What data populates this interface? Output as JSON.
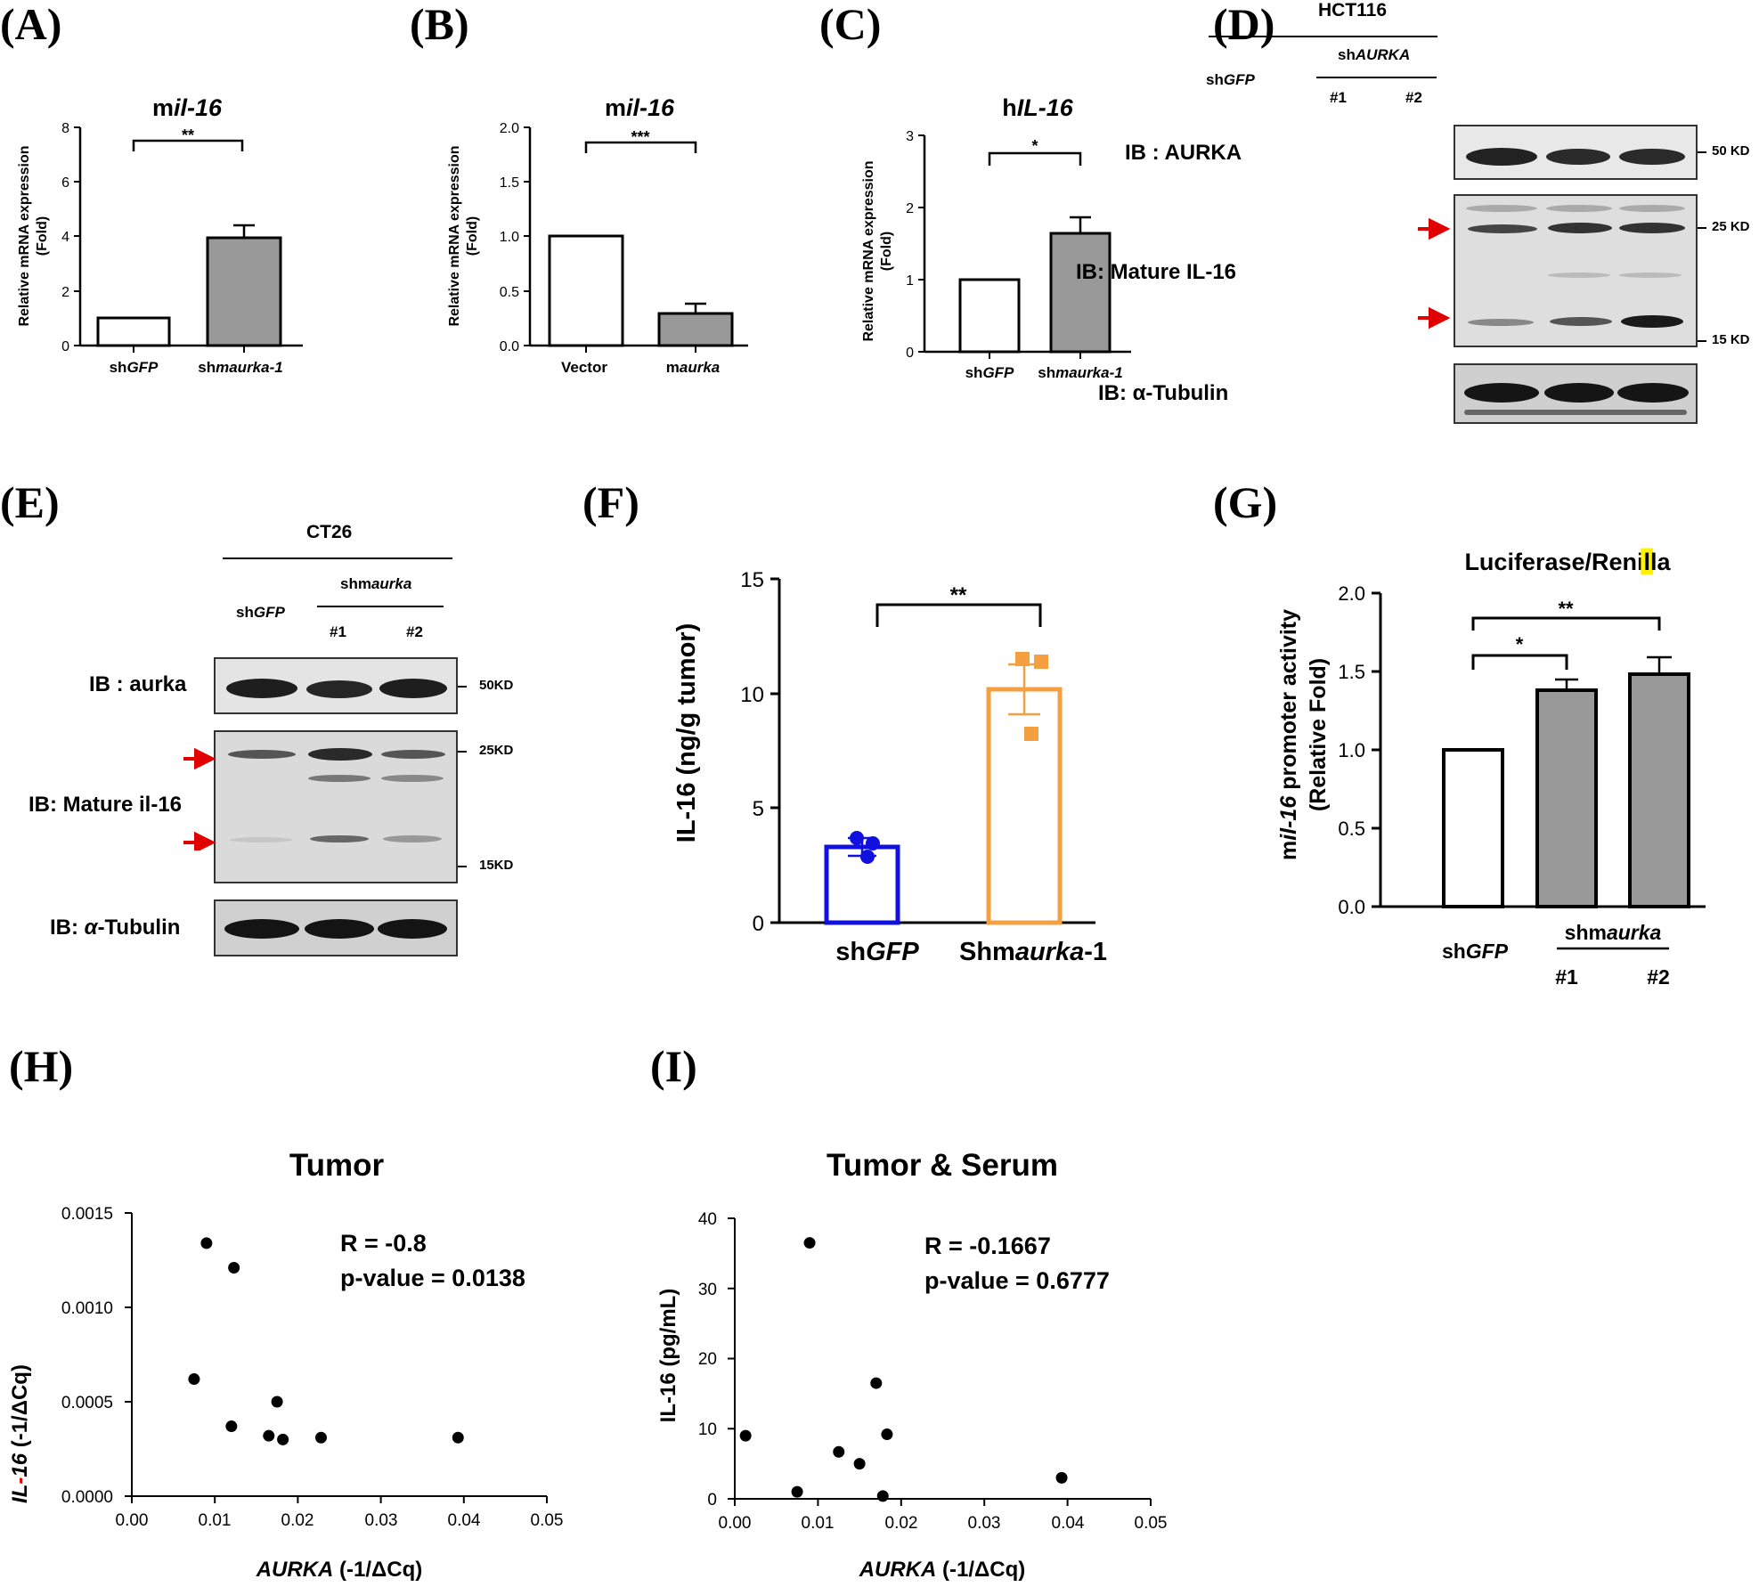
{
  "panels": {
    "A": {
      "label": "(A)",
      "title_prefix": "m",
      "title_gene": "il-16",
      "ylabel": [
        "Relative mRNA expression",
        "(Fold)"
      ],
      "yticks": [
        "0",
        "2",
        "4",
        "6",
        "8"
      ],
      "sig": "**",
      "cats": [
        {
          "pre": "sh",
          "it": "GFP",
          "post": ""
        },
        {
          "pre": "sh",
          "it": "maurka-1",
          "post": ""
        }
      ]
    },
    "B": {
      "label": "(B)",
      "title_prefix": "m",
      "title_gene": "il-16",
      "ylabel": [
        "Relative mRNA expression",
        "(Fold)"
      ],
      "yticks": [
        "0.0",
        "0.5",
        "1.0",
        "1.5",
        "2.0"
      ],
      "sig": "***",
      "cats": [
        {
          "pre": "Vector",
          "it": "",
          "post": ""
        },
        {
          "pre": "m",
          "it": "aurka",
          "post": ""
        }
      ]
    },
    "C": {
      "label": "(C)",
      "title_prefix": "h",
      "title_gene": "IL-16",
      "ylabel": [
        "Relative mRNA expression",
        "(Fold)"
      ],
      "yticks": [
        "0",
        "1",
        "2",
        "3"
      ],
      "sig": "*",
      "cats": [
        {
          "pre": "sh",
          "it": "GFP",
          "post": ""
        },
        {
          "pre": "sh",
          "it": "maurka-1",
          "post": ""
        }
      ]
    },
    "D": {
      "label": "(D)",
      "cell_line": "HCT116",
      "group_pre": "sh",
      "group_it": "AURKA",
      "lane1_pre": "sh",
      "lane1_it": "GFP",
      "lane2": "#1",
      "lane3": "#2",
      "blot1": "IB : AURKA",
      "blot2": "IB: Mature IL-16",
      "blot3": "IB: α-Tubulin",
      "kd1": "50 KD",
      "kd2": "25 KD",
      "kd3": "15 KD"
    },
    "E": {
      "label": "(E)",
      "cell_line": "CT26",
      "group_pre": "shm",
      "group_it": "aurka",
      "lane1_pre": "sh",
      "lane1_it": "GFP",
      "lane2": "#1",
      "lane3": "#2",
      "blot1": "IB : aurka",
      "blot2": "IB: Mature il-16",
      "blot3_pre": "IB: ",
      "blot3_it": "α",
      "blot3_post": "-Tubulin",
      "kd1": "50KD",
      "kd2": "25KD",
      "kd3": "15KD"
    },
    "F": {
      "label": "(F)",
      "ylabel": "IL-16 (ng/g tumor)",
      "yticks": [
        "0",
        "5",
        "10",
        "15"
      ],
      "sig": "**",
      "cats": [
        {
          "pre": "sh",
          "it": "GFP",
          "post": ""
        },
        {
          "pre": "Shm",
          "it": "aurka",
          "post": "-1"
        }
      ]
    },
    "G": {
      "label": "(G)",
      "title_a": "Luciferase/Reni",
      "title_hl": "l",
      "title_b": "la",
      "ylabel_pre": "m",
      "ylabel_it": "il-16",
      "ylabel_post": " promoter activity",
      "ylabel2": "(Relative Fold)",
      "yticks": [
        "0.0",
        "0.5",
        "1.0",
        "1.5",
        "2.0"
      ],
      "sig1": "*",
      "sig2": "**",
      "cat1_pre": "sh",
      "cat1_it": "GFP",
      "group_pre": "shm",
      "group_it": "aurka",
      "cat2": "#1",
      "cat3": "#2"
    },
    "H": {
      "label": "(H)",
      "title": "Tumor",
      "ylabel_it1": "IL",
      "ylabel_red": "-",
      "ylabel_it2": "16",
      "ylabel_post": " (-1/ΔCq)",
      "xlabel_it": "AURKA",
      "xlabel_post": " (-1/ΔCq)",
      "yticks": [
        "0.0000",
        "0.0005",
        "0.0010",
        "0.0015"
      ],
      "xticks": [
        "0.00",
        "0.01",
        "0.02",
        "0.03",
        "0.04",
        "0.05"
      ],
      "stat_r": "R = -0.8",
      "stat_p": "p-value = 0.0138"
    },
    "I": {
      "label": "(I)",
      "title": "Tumor & Serum",
      "ylabel": "IL-16 (pg/mL)",
      "xlabel_it": "AURKA",
      "xlabel_post": " (-1/ΔCq)",
      "yticks": [
        "0",
        "10",
        "20",
        "30",
        "40"
      ],
      "xticks": [
        "0.00",
        "0.01",
        "0.02",
        "0.03",
        "0.04",
        "0.05"
      ],
      "stat_r": "R = -0.1667",
      "stat_p": "p-value = 0.6777"
    }
  },
  "chart_data": [
    {
      "id": "A",
      "type": "bar",
      "title": "mil-16",
      "ylabel": "Relative mRNA expression (Fold)",
      "categories": [
        "shGFP",
        "shmaurka-1"
      ],
      "values": [
        1,
        3.95
      ],
      "errors": [
        0,
        0.45
      ],
      "ylim": [
        0,
        8
      ],
      "significance": "**"
    },
    {
      "id": "B",
      "type": "bar",
      "title": "mil-16",
      "ylabel": "Relative mRNA expression (Fold)",
      "categories": [
        "Vector",
        "maurka"
      ],
      "values": [
        1,
        0.29
      ],
      "errors": [
        0,
        0.09
      ],
      "ylim": [
        0,
        2
      ],
      "significance": "***"
    },
    {
      "id": "C",
      "type": "bar",
      "title": "hIL-16",
      "ylabel": "Relative mRNA expression (Fold)",
      "categories": [
        "shGFP",
        "shmaurka-1"
      ],
      "values": [
        1,
        1.64
      ],
      "errors": [
        0,
        0.22
      ],
      "ylim": [
        0,
        3
      ],
      "significance": "*"
    },
    {
      "id": "F",
      "type": "bar",
      "ylabel": "IL-16 (ng/g tumor)",
      "categories": [
        "shGFP",
        "Shmaurka-1"
      ],
      "values": [
        3.3,
        10.2
      ],
      "errors": [
        0.4,
        1.1
      ],
      "points": [
        [
          3.7,
          2.9,
          3.5
        ],
        [
          11.3,
          11.2,
          8.0
        ]
      ],
      "colors": [
        "#1010e0",
        "#f5a040"
      ],
      "ylim": [
        0,
        15
      ],
      "significance": "**"
    },
    {
      "id": "G",
      "type": "bar",
      "title": "Luciferase/Renilla",
      "ylabel": "mil-16 promoter activity (Relative Fold)",
      "categories": [
        "shGFP",
        "shmaurka #1",
        "shmaurka #2"
      ],
      "values": [
        1.0,
        1.38,
        1.48
      ],
      "errors": [
        0,
        0.07,
        0.11
      ],
      "ylim": [
        0,
        2
      ],
      "significance": [
        "*",
        "**"
      ]
    },
    {
      "id": "H",
      "type": "scatter",
      "title": "Tumor",
      "xlabel": "AURKA (-1/ΔCq)",
      "ylabel": "IL-16 (-1/ΔCq)",
      "xlim": [
        0,
        0.05
      ],
      "ylim": [
        0,
        0.0015
      ],
      "x": [
        0.0075,
        0.009,
        0.0123,
        0.012,
        0.0165,
        0.0175,
        0.0182,
        0.0228,
        0.0393
      ],
      "y": [
        0.00062,
        0.00134,
        0.00121,
        0.00037,
        0.00032,
        0.0005,
        0.0003,
        0.00031,
        0.00031
      ],
      "R": -0.8,
      "p_value": 0.0138
    },
    {
      "id": "I",
      "type": "scatter",
      "title": "Tumor & Serum",
      "xlabel": "AURKA (-1/ΔCq)",
      "ylabel": "IL-16 (pg/mL)",
      "xlim": [
        0,
        0.05
      ],
      "ylim": [
        0,
        40
      ],
      "x": [
        0.0013,
        0.0075,
        0.009,
        0.0125,
        0.015,
        0.017,
        0.0178,
        0.0183,
        0.0393
      ],
      "y": [
        9.0,
        1.0,
        36.5,
        6.7,
        5.0,
        16.5,
        0.4,
        9.2,
        3.0
      ],
      "R": -0.1667,
      "p_value": 0.6777
    }
  ]
}
